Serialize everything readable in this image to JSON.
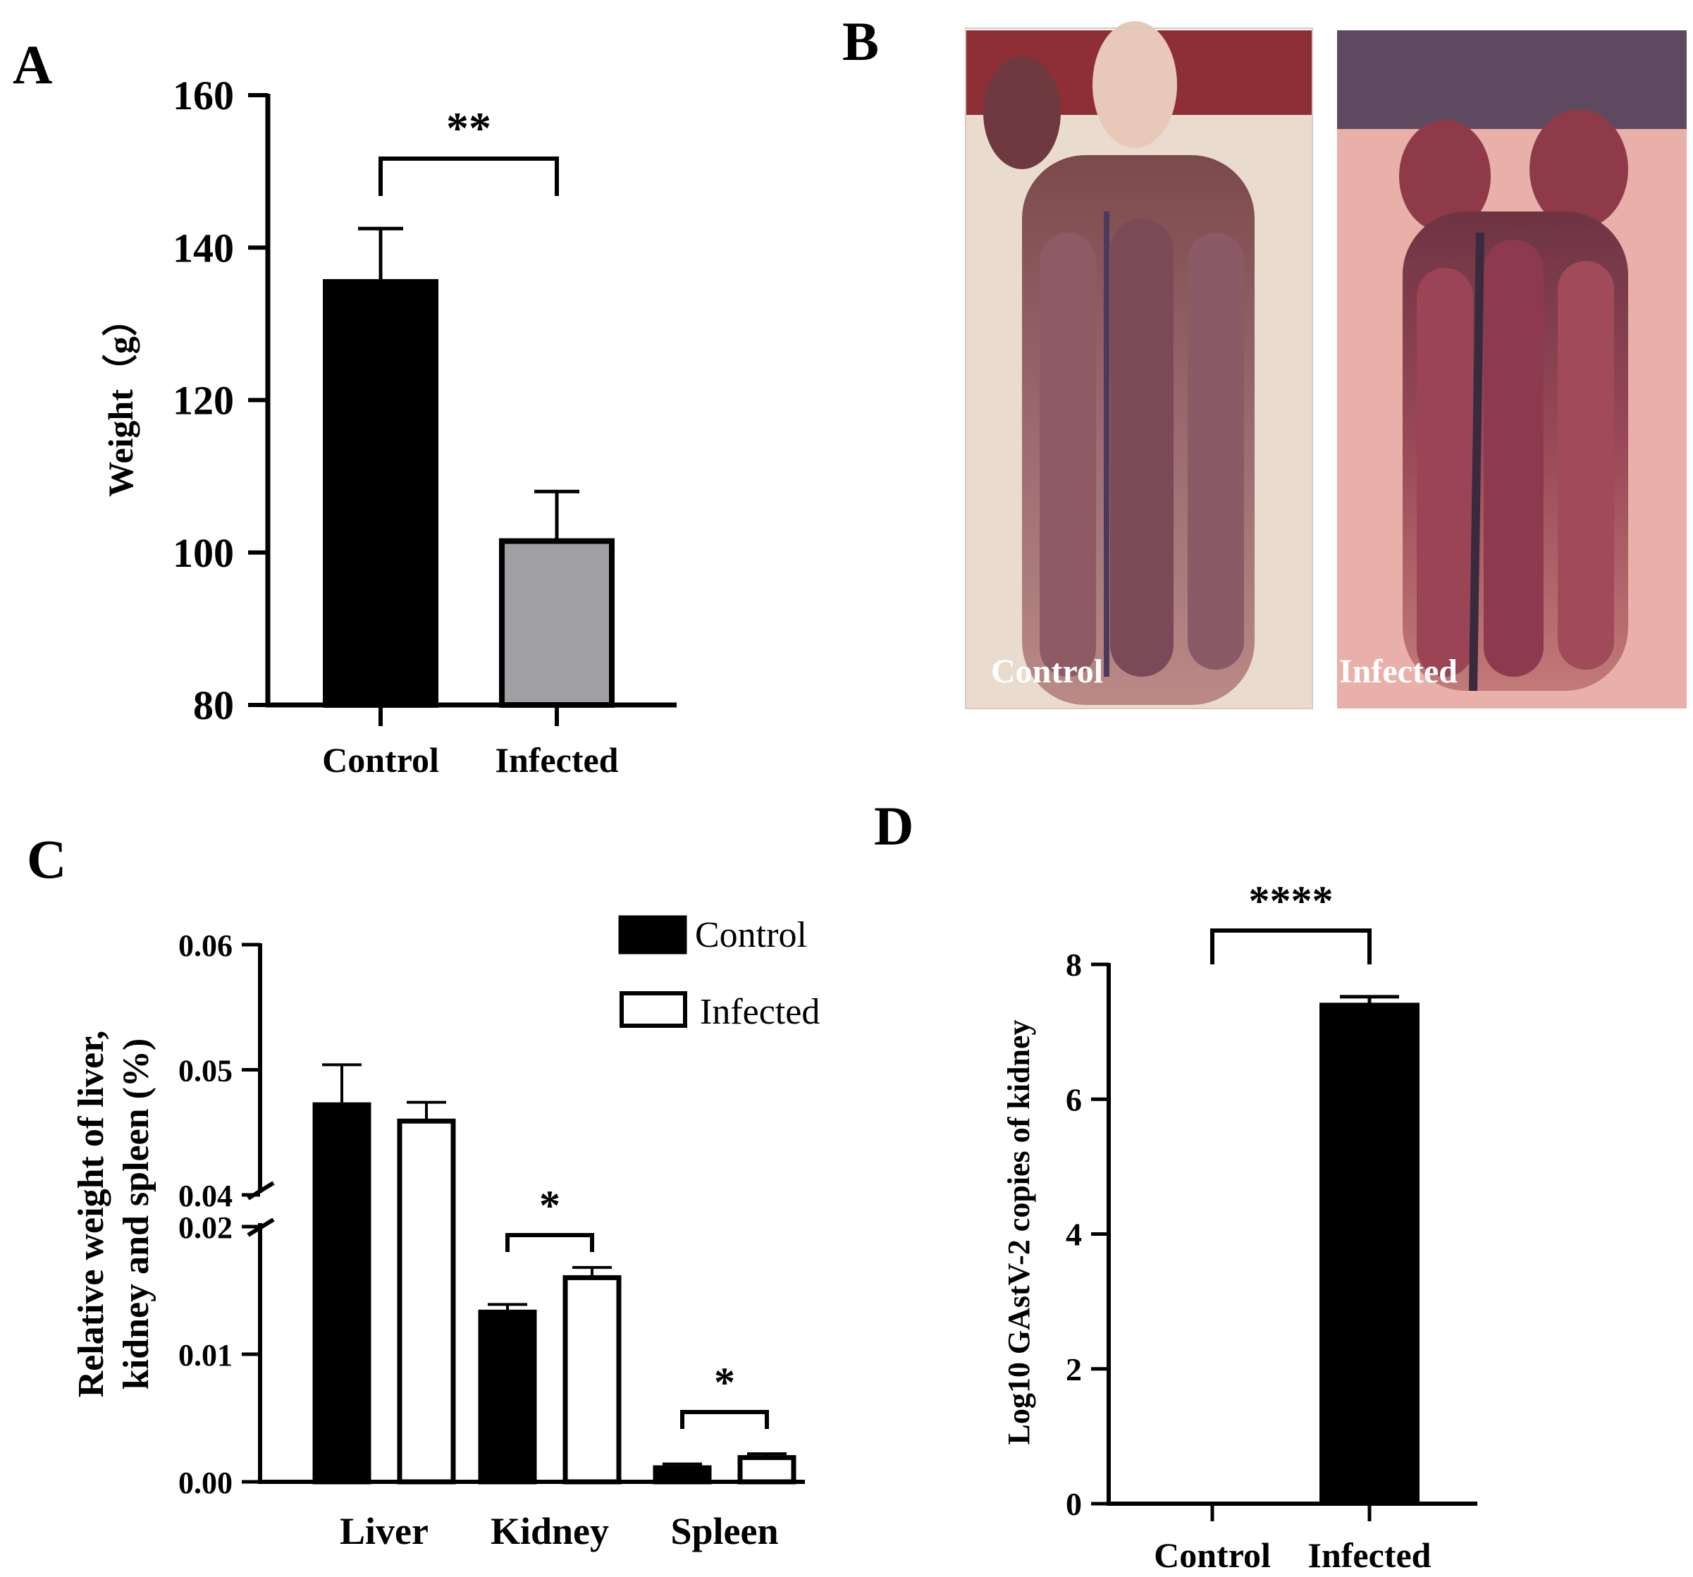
{
  "figure": {
    "panel_labels": [
      "A",
      "B",
      "C",
      "D"
    ]
  },
  "chart_data": [
    {
      "panel": "A",
      "type": "bar",
      "categories": [
        "Control",
        "Infected"
      ],
      "values": [
        135.5,
        101.5
      ],
      "errors": [
        7,
        6.5
      ],
      "ylabel": "Weight（g）",
      "ylim": [
        80,
        160
      ],
      "yticks": [
        "80",
        "100",
        "120",
        "140",
        "160"
      ],
      "colors": [
        "#000000",
        "#a0a0a4"
      ],
      "significance": [
        {
          "between": [
            "Control",
            "Infected"
          ],
          "label": "**"
        }
      ]
    },
    {
      "panel": "C",
      "type": "bar",
      "categories": [
        "Liver",
        "Kidney",
        "Spleen"
      ],
      "series": [
        {
          "name": "Control",
          "values": [
            0.0472,
            0.0133,
            0.0011
          ],
          "errors": [
            0.0032,
            0.0006,
            0.0003
          ],
          "color": "#000000"
        },
        {
          "name": "Infected",
          "values": [
            0.0459,
            0.016,
            0.0019
          ],
          "errors": [
            0.0015,
            0.0008,
            0.0003
          ],
          "color": "#ffffff"
        }
      ],
      "ylabel": "Relative weight of liver, kidney and spleen (%)",
      "ylabel_lines": [
        "kidney and spleen (%)",
        "Relative weight of liver,"
      ],
      "ylim_lower": [
        0,
        0.02
      ],
      "ylim_upper": [
        0.04,
        0.06
      ],
      "yticks": [
        "0.00",
        "0.01",
        "0.02",
        "0.04",
        "0.05",
        "0.06"
      ],
      "axis_break": true,
      "legend_position": "top-right",
      "significance": [
        {
          "category": "Kidney",
          "label": "*"
        },
        {
          "category": "Spleen",
          "label": "*"
        }
      ]
    },
    {
      "panel": "D",
      "type": "bar",
      "categories": [
        "Control",
        "Infected"
      ],
      "values": [
        0,
        7.4
      ],
      "errors": [
        0,
        0.12
      ],
      "ylabel": "Log10 GAstV-2 copies of kidney",
      "ylim": [
        0,
        8
      ],
      "yticks": [
        "0",
        "2",
        "4",
        "6",
        "8"
      ],
      "colors": [
        "#000000",
        "#000000"
      ],
      "significance": [
        {
          "between": [
            "Control",
            "Infected"
          ],
          "label": "****"
        }
      ]
    }
  ],
  "photos": {
    "panel": "B",
    "images": [
      {
        "caption": "Control",
        "tone": "#8a5a62"
      },
      {
        "caption": "Infected",
        "tone": "#9a4652"
      }
    ]
  }
}
